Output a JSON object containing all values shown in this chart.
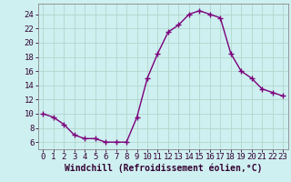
{
  "hours": [
    0,
    1,
    2,
    3,
    4,
    5,
    6,
    7,
    8,
    9,
    10,
    11,
    12,
    13,
    14,
    15,
    16,
    17,
    18,
    19,
    20,
    21,
    22,
    23
  ],
  "values": [
    10.0,
    9.5,
    8.5,
    7.0,
    6.5,
    6.5,
    6.0,
    6.0,
    6.0,
    9.5,
    15.0,
    18.5,
    21.5,
    22.5,
    24.0,
    24.5,
    24.0,
    23.5,
    18.5,
    16.0,
    15.0,
    13.5,
    13.0,
    12.5
  ],
  "line_color": "#7b007b",
  "marker": "+",
  "markersize": 4,
  "linewidth": 1.0,
  "bg_color": "#cef0f0",
  "grid_color": "#b0d8cc",
  "xlabel": "Windchill (Refroidissement éolien,°C)",
  "xlabel_fontsize": 7,
  "ylabel_ticks": [
    6,
    8,
    10,
    12,
    14,
    16,
    18,
    20,
    22,
    24
  ],
  "xlim": [
    -0.5,
    23.5
  ],
  "ylim": [
    5.0,
    25.5
  ],
  "tick_fontsize": 6.5
}
